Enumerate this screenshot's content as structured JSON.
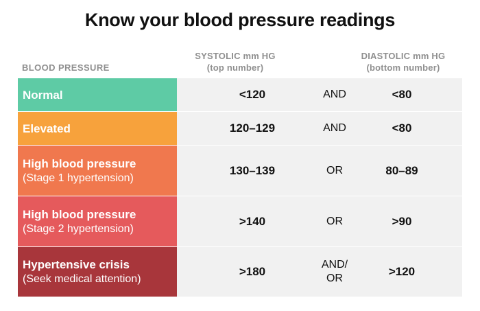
{
  "title": "Know your blood pressure readings",
  "headers": {
    "category": "BLOOD PRESSURE",
    "systolic_line1": "SYSTOLIC mm HG",
    "systolic_line2": "(top number)",
    "diastolic_line1": "DIASTOLIC mm HG",
    "diastolic_line2": "(bottom number)"
  },
  "colors": {
    "normal": "#5ecba5",
    "elevated": "#f7a23c",
    "stage1": "#f0784e",
    "stage2": "#e55a5c",
    "crisis": "#a8363b",
    "data_bg": "#f1f1f1"
  },
  "rows": [
    {
      "label": "Normal",
      "sublabel": "",
      "systolic": "<120",
      "conjunction": "AND",
      "diastolic": "<80"
    },
    {
      "label": "Elevated",
      "sublabel": "",
      "systolic": "120–129",
      "conjunction": "AND",
      "diastolic": "<80"
    },
    {
      "label": "High blood pressure",
      "sublabel": "(Stage 1 hypertension)",
      "systolic": "130–139",
      "conjunction": "OR",
      "diastolic": "80–89"
    },
    {
      "label": "High blood pressure",
      "sublabel": "(Stage 2 hypertension)",
      "systolic": ">140",
      "conjunction": "OR",
      "diastolic": ">90"
    },
    {
      "label": "Hypertensive crisis",
      "sublabel": "(Seek medical attention)",
      "systolic": ">180",
      "conjunction": "AND/\nOR",
      "diastolic": ">120"
    }
  ]
}
